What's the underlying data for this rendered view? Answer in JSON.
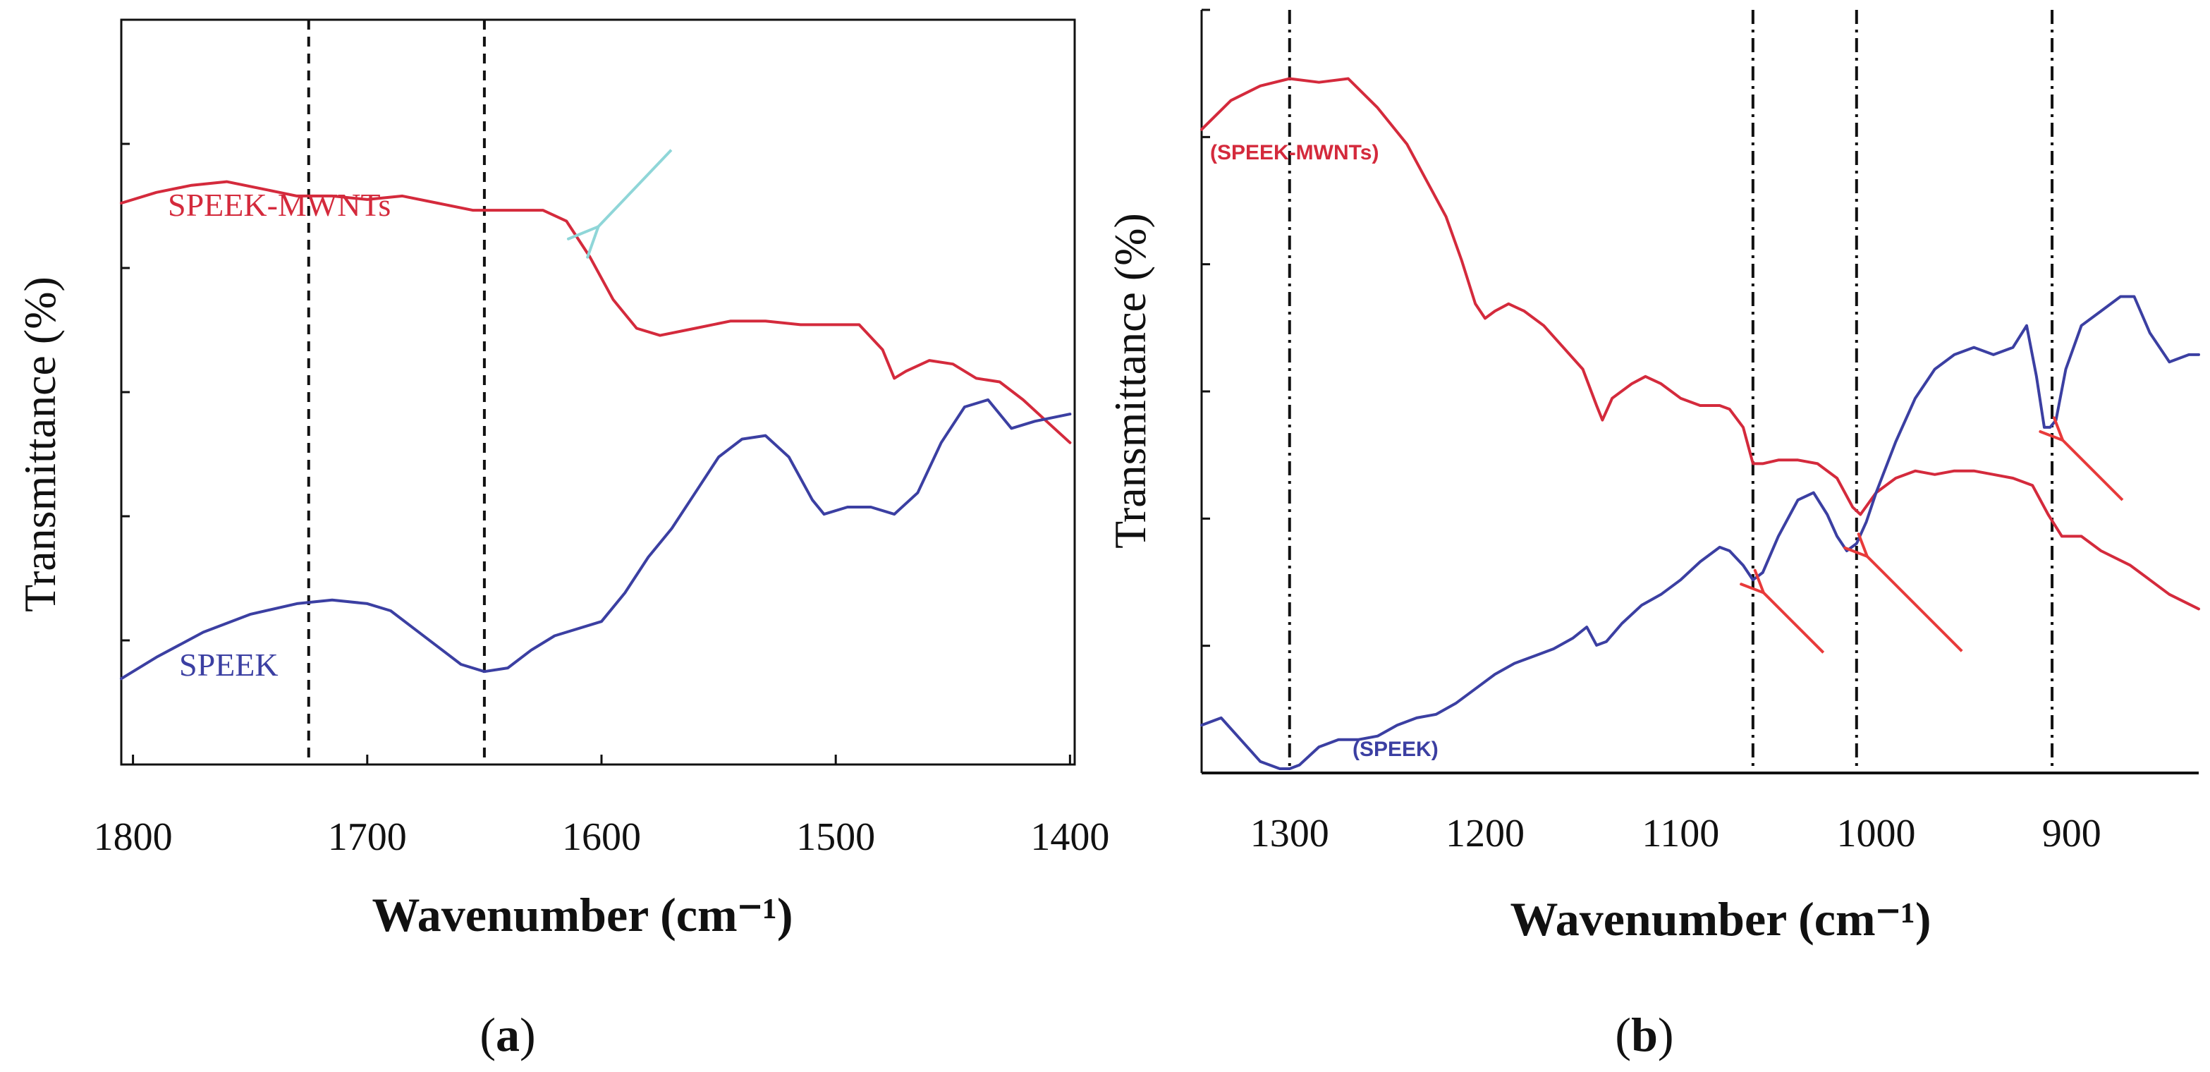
{
  "chart_data": [
    {
      "type": "line",
      "panel_label": "(a)",
      "panel_letter": "a",
      "xlabel": "Wavenumber (cm⁻¹)",
      "ylabel": "Transmittance (%)",
      "xlim": [
        1805,
        1398
      ],
      "ylim": [
        0,
        100
      ],
      "x_ticks": [
        1800,
        1700,
        1600,
        1500,
        1400
      ],
      "x_tick_labels": [
        "1800",
        "1700",
        "1600",
        "1500",
        "1400"
      ],
      "reference_lines": [
        1725,
        1650
      ],
      "series": [
        {
          "name": "SPEEK-MWNTs",
          "label": "SPEEK-MWNTs",
          "color": "#d42a3c",
          "x": [
            1805,
            1790,
            1775,
            1760,
            1745,
            1730,
            1715,
            1700,
            1685,
            1670,
            1655,
            1640,
            1625,
            1615,
            1605,
            1595,
            1585,
            1575,
            1560,
            1545,
            1530,
            1515,
            1500,
            1490,
            1480,
            1475,
            1470,
            1460,
            1450,
            1440,
            1430,
            1420,
            1410,
            1400
          ],
          "y": [
            78.5,
            80,
            81,
            81.5,
            80.5,
            79.5,
            79.5,
            79,
            79.5,
            78.5,
            77.5,
            77.5,
            77.5,
            76,
            71,
            65,
            61,
            60,
            61,
            62,
            62,
            61.5,
            61.5,
            61.5,
            58,
            54,
            55,
            56.5,
            56,
            54,
            53.5,
            51,
            48,
            45
          ]
        },
        {
          "name": "SPEEK",
          "label": "SPEEK",
          "color": "#3b3fa2",
          "x": [
            1805,
            1790,
            1770,
            1750,
            1730,
            1715,
            1700,
            1690,
            1680,
            1670,
            1660,
            1650,
            1640,
            1630,
            1620,
            1600,
            1590,
            1580,
            1570,
            1560,
            1550,
            1540,
            1530,
            1520,
            1510,
            1505,
            1495,
            1485,
            1475,
            1465,
            1455,
            1445,
            1435,
            1425,
            1415,
            1400
          ],
          "y": [
            12,
            15,
            18.5,
            21,
            22.5,
            23,
            22.5,
            21.5,
            19,
            16.5,
            14,
            13,
            13.5,
            16,
            18,
            20,
            24,
            29,
            33,
            38,
            43,
            45.5,
            46,
            43,
            37,
            35,
            36,
            36,
            35,
            38,
            45,
            50,
            51,
            47,
            48,
            49
          ]
        }
      ],
      "annotations": [
        {
          "type": "arrow",
          "color": "#8fd6d8",
          "points_to_x": 1605,
          "points_to_y": 74
        }
      ]
    },
    {
      "type": "line",
      "panel_label": "(b)",
      "panel_letter": "b",
      "xlabel": "Wavenumber (cm⁻¹)",
      "ylabel": "Transmittance (%)",
      "xlim": [
        1345,
        835
      ],
      "ylim": [
        0,
        100
      ],
      "x_ticks": [
        1300,
        1200,
        1100,
        1000,
        900
      ],
      "x_tick_labels": [
        "1300",
        "1200",
        "1100",
        "1000",
        "900"
      ],
      "reference_lines": [
        1300,
        1063,
        1010,
        910
      ],
      "series": [
        {
          "name": "SPEEK-MWNTs",
          "label": "(SPEEK-MWNTs)",
          "color": "#d42a3c",
          "x": [
            1345,
            1330,
            1315,
            1300,
            1285,
            1270,
            1255,
            1240,
            1230,
            1220,
            1212,
            1205,
            1200,
            1195,
            1188,
            1180,
            1170,
            1160,
            1150,
            1143,
            1140,
            1135,
            1125,
            1118,
            1110,
            1100,
            1090,
            1080,
            1075,
            1068,
            1063,
            1058,
            1050,
            1040,
            1030,
            1020,
            1012,
            1008,
            1000,
            990,
            980,
            970,
            960,
            950,
            940,
            930,
            920,
            912,
            905,
            895,
            885,
            870,
            860,
            850,
            835
          ],
          "y": [
            88,
            92,
            94,
            95,
            94.5,
            95,
            91,
            86,
            81,
            76,
            70,
            64,
            62,
            63,
            64,
            63,
            61,
            58,
            55,
            50,
            48,
            51,
            53,
            54,
            53,
            51,
            50,
            50,
            49.5,
            47,
            42,
            42,
            42.5,
            42.5,
            42,
            40,
            36,
            35,
            38,
            40,
            41,
            40.5,
            41,
            41,
            40.5,
            40,
            39,
            35,
            32,
            32,
            30,
            28,
            26,
            24,
            22
          ]
        },
        {
          "name": "SPEEK",
          "label": "(SPEEK)",
          "color": "#3b3fa2",
          "x": [
            1345,
            1335,
            1325,
            1315,
            1305,
            1300,
            1295,
            1285,
            1275,
            1265,
            1255,
            1245,
            1235,
            1225,
            1215,
            1205,
            1195,
            1185,
            1175,
            1165,
            1155,
            1148,
            1143,
            1138,
            1130,
            1120,
            1110,
            1100,
            1090,
            1080,
            1075,
            1068,
            1063,
            1058,
            1050,
            1040,
            1032,
            1025,
            1020,
            1015,
            1010,
            1005,
            1000,
            990,
            980,
            970,
            960,
            950,
            940,
            930,
            923,
            918,
            914,
            911,
            908,
            903,
            895,
            885,
            875,
            868,
            860,
            850,
            840,
            835
          ],
          "y": [
            6,
            7,
            4,
            1,
            0,
            0,
            0.5,
            3,
            4,
            4,
            4.5,
            6,
            7,
            7.5,
            9,
            11,
            13,
            14.5,
            15.5,
            16.5,
            18,
            19.5,
            17,
            17.5,
            20,
            22.5,
            24,
            26,
            28.5,
            30.5,
            30,
            28,
            26,
            27,
            32,
            37,
            38,
            35,
            32,
            30,
            31,
            34,
            38,
            45,
            51,
            55,
            57,
            58,
            57,
            58,
            61,
            54,
            47,
            47,
            48,
            55,
            61,
            63,
            65,
            65,
            60,
            56,
            57,
            57
          ]
        }
      ],
      "annotations": [
        {
          "type": "arrow",
          "color": "#e83a3a",
          "points_to_x": 1063,
          "points_to_y": 26
        },
        {
          "type": "arrow",
          "color": "#e83a3a",
          "points_to_x": 1010,
          "points_to_y": 31
        },
        {
          "type": "arrow",
          "color": "#e83a3a",
          "points_to_x": 910,
          "points_to_y": 47
        }
      ]
    }
  ]
}
